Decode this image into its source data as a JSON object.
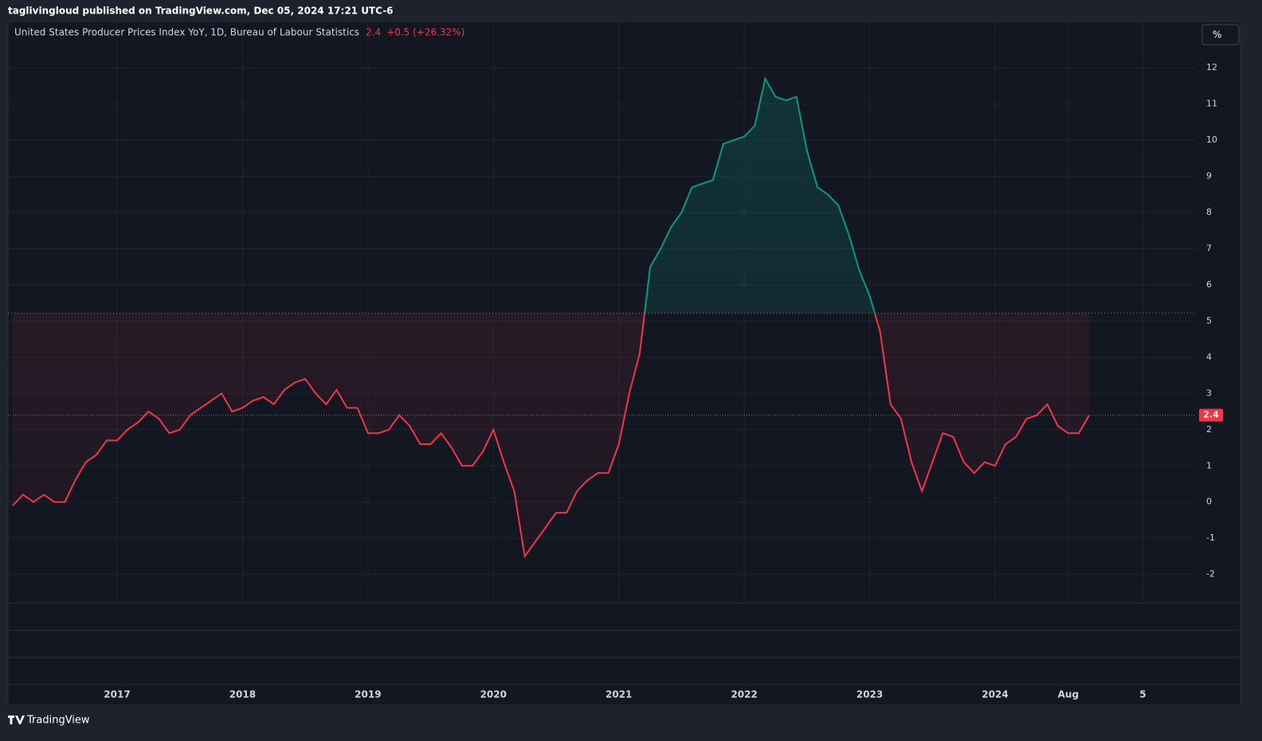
{
  "header": "taglivingloud published on TradingView.com, Dec 05, 2024 17:21 UTC-6",
  "footer": "TradingView",
  "unit_button": "%",
  "chart_data": {
    "type": "line",
    "change_label": "+0.5 (+26.32%)",
    "x": [
      "2016-03",
      "2016-04",
      "2016-05",
      "2016-06",
      "2016-07",
      "2016-08",
      "2016-09",
      "2016-10",
      "2016-11",
      "2016-12",
      "2017-01",
      "2017-02",
      "2017-03",
      "2017-04",
      "2017-05",
      "2017-06",
      "2017-07",
      "2017-08",
      "2017-09",
      "2017-10",
      "2017-11",
      "2017-12",
      "2018-01",
      "2018-02",
      "2018-03",
      "2018-04",
      "2018-05",
      "2018-06",
      "2018-07",
      "2018-08",
      "2018-09",
      "2018-10",
      "2018-11",
      "2018-12",
      "2019-01",
      "2019-02",
      "2019-03",
      "2019-04",
      "2019-05",
      "2019-06",
      "2019-07",
      "2019-08",
      "2019-09",
      "2019-10",
      "2019-11",
      "2019-12",
      "2020-01",
      "2020-02",
      "2020-03",
      "2020-04",
      "2020-05",
      "2020-06",
      "2020-07",
      "2020-08",
      "2020-09",
      "2020-10",
      "2020-11",
      "2020-12",
      "2021-01",
      "2021-02",
      "2021-03",
      "2021-04",
      "2021-05",
      "2021-06",
      "2021-07",
      "2021-08",
      "2021-09",
      "2021-10",
      "2021-11",
      "2021-12",
      "2022-01",
      "2022-02",
      "2022-03",
      "2022-04",
      "2022-05",
      "2022-06",
      "2022-07",
      "2022-08",
      "2022-09",
      "2022-10",
      "2022-11",
      "2022-12",
      "2023-01",
      "2023-02",
      "2023-03",
      "2023-04",
      "2023-05",
      "2023-06",
      "2023-07",
      "2023-08",
      "2023-09",
      "2023-10",
      "2023-11",
      "2023-12",
      "2024-01",
      "2024-02",
      "2024-03",
      "2024-04",
      "2024-05",
      "2024-06",
      "2024-07",
      "2024-08",
      "2024-09",
      "2024-10"
    ],
    "series": [
      {
        "name": "United States Producer Prices Index YoY, 1D, Bureau of Labour Statistics",
        "color": "#f23645",
        "color_above": "#089981",
        "values": [
          -0.1,
          0.2,
          0,
          0.2,
          0,
          0,
          0.6,
          1.1,
          1.3,
          1.7,
          1.7,
          2.0,
          2.2,
          2.5,
          2.3,
          1.9,
          2.0,
          2.4,
          2.6,
          2.8,
          3.0,
          2.5,
          2.6,
          2.8,
          2.9,
          2.7,
          3.1,
          3.3,
          3.4,
          3.0,
          2.7,
          3.1,
          2.6,
          2.6,
          1.9,
          1.9,
          2.0,
          2.4,
          2.1,
          1.6,
          1.6,
          1.9,
          1.5,
          1.0,
          1.0,
          1.4,
          2.0,
          1.1,
          0.3,
          -1.5,
          -1.1,
          -0.7,
          -0.3,
          -0.3,
          0.3,
          0.6,
          0.8,
          0.8,
          1.6,
          3.0,
          4.1,
          6.5,
          7.0,
          7.6,
          8.0,
          8.7,
          8.8,
          8.9,
          9.9,
          10.0,
          10.1,
          10.4,
          11.7,
          11.2,
          11.1,
          11.2,
          9.7,
          8.7,
          8.5,
          8.2,
          7.4,
          6.4,
          5.7,
          4.7,
          2.7,
          2.3,
          1.1,
          0.3,
          1.1,
          1.9,
          1.8,
          1.1,
          0.8,
          1.1,
          1.0,
          1.6,
          1.8,
          2.3,
          2.4,
          2.7,
          2.1,
          1.9,
          1.9,
          2.4
        ]
      }
    ],
    "baseline": 5.22,
    "xlim": [
      "2016-02-18",
      "2025-08-05"
    ],
    "xticks": [
      {
        "value": "2017-01",
        "label": "2017"
      },
      {
        "value": "2018-01",
        "label": "2018"
      },
      {
        "value": "2019-01",
        "label": "2019"
      },
      {
        "value": "2020-01",
        "label": "2020"
      },
      {
        "value": "2021-01",
        "label": "2021"
      },
      {
        "value": "2022-01",
        "label": "2022"
      },
      {
        "value": "2023-01",
        "label": "2023"
      },
      {
        "value": "2024-01",
        "label": "2024"
      },
      {
        "value": "2024-08",
        "label": "Aug"
      },
      {
        "value": "2025-03-05",
        "label": "5"
      }
    ],
    "ylim": [
      -2.8,
      13.28
    ],
    "yticks": [
      -2,
      -1,
      0,
      1,
      2,
      3,
      4,
      5,
      6,
      7,
      8,
      9,
      10,
      11,
      12
    ],
    "grid": true
  }
}
